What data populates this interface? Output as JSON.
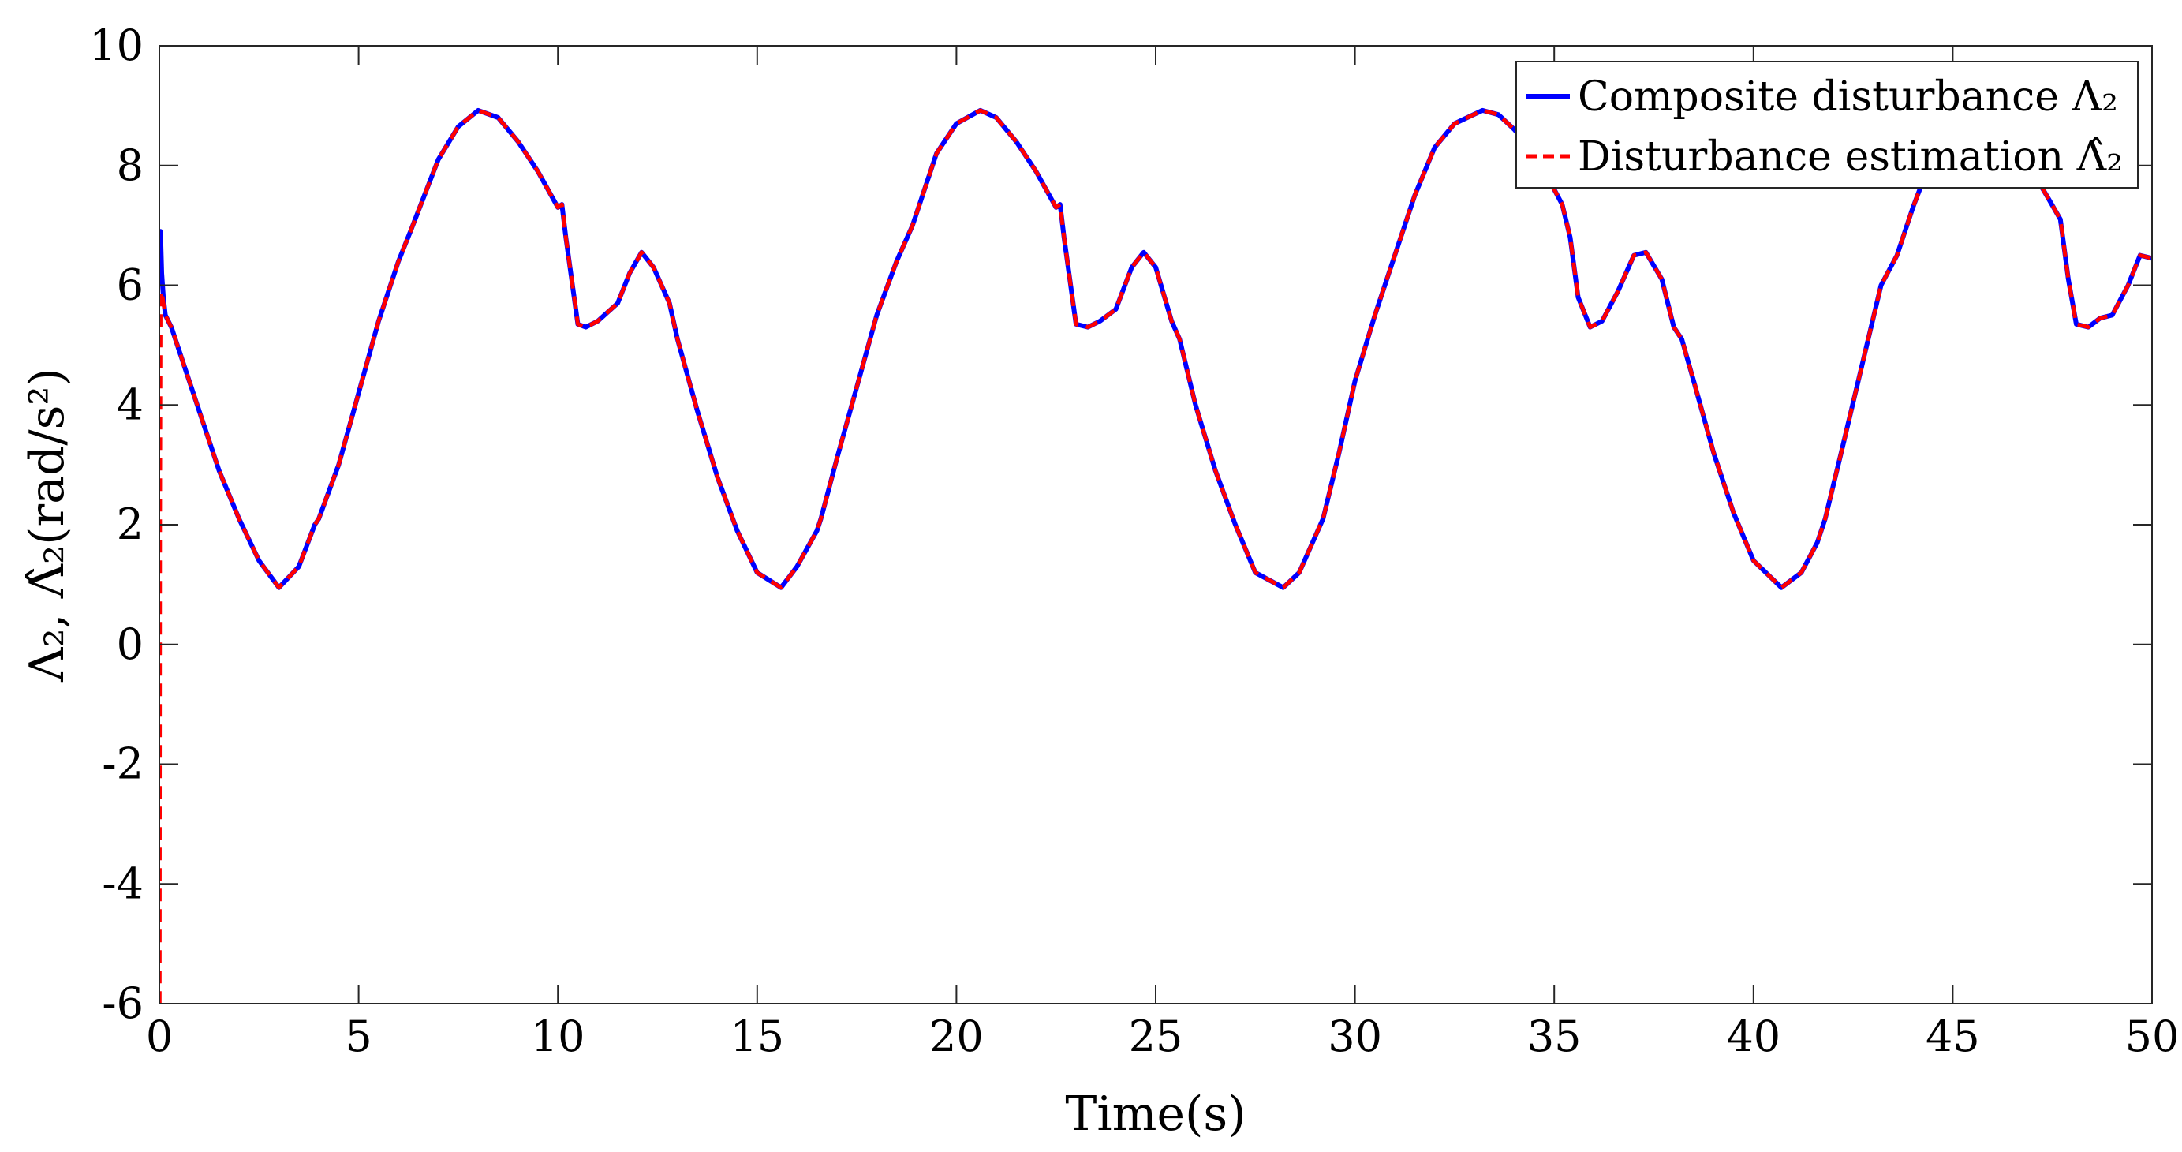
{
  "chart_data": {
    "type": "line",
    "title": "",
    "xlabel": "Time(s)",
    "ylabel": "Λ₂, Λ̂₂(rad/s²)",
    "xlim": [
      0,
      50
    ],
    "ylim": [
      -6,
      10
    ],
    "xticks": [
      0,
      5,
      10,
      15,
      20,
      25,
      30,
      35,
      40,
      45,
      50
    ],
    "yticks": [
      -6,
      -4,
      -2,
      0,
      2,
      4,
      6,
      8,
      10
    ],
    "xtick_labels": [
      "0",
      "5",
      "10",
      "15",
      "20",
      "25",
      "30",
      "35",
      "40",
      "45",
      "50"
    ],
    "ytick_labels": [
      "-6",
      "-4",
      "-2",
      "0",
      "2",
      "4",
      "6",
      "8",
      "10"
    ],
    "grid": false,
    "legend_position": "top-right",
    "period": 12.57,
    "series": [
      {
        "name": "Composite disturbance Λ₂",
        "color": "#0000ff",
        "style": "solid",
        "x": [
          0,
          0.03,
          0.06,
          0.1,
          0.15,
          0.3,
          0.5,
          1.0,
          1.5,
          2.0,
          2.5,
          3.0,
          3.5,
          3.9,
          4.0,
          4.5,
          5.0,
          5.5,
          6.0,
          6.3,
          7.0,
          7.5,
          8.0,
          8.5,
          9.0,
          9.5,
          10.0,
          10.1,
          10.2,
          10.5,
          10.7,
          11.0,
          11.5,
          11.8,
          12.1,
          12.4,
          12.8,
          13.0,
          13.5,
          14.0,
          14.5,
          15.0,
          15.6,
          16.0,
          16.5,
          16.6,
          17.0,
          17.5,
          18.0,
          18.5,
          18.9,
          19.5,
          20.0,
          20.6,
          21.0,
          21.5,
          22.0,
          22.5,
          22.6,
          22.7,
          23.0,
          23.3,
          23.6,
          24.0,
          24.4,
          24.7,
          25.0,
          25.4,
          25.6,
          26.0,
          26.5,
          27.0,
          27.5,
          28.2,
          28.6,
          29.0,
          29.2,
          29.6,
          30.0,
          30.5,
          31.0,
          31.5,
          32.0,
          32.5,
          33.2,
          33.6,
          34.0,
          34.5,
          35.0,
          35.2,
          35.4,
          35.6,
          35.9,
          36.2,
          36.6,
          37.0,
          37.3,
          37.7,
          38.0,
          38.2,
          38.5,
          39.0,
          39.5,
          40.0,
          40.7,
          41.2,
          41.6,
          41.8,
          42.2,
          42.7,
          43.2,
          43.6,
          44.0,
          44.4,
          44.8,
          45.2,
          45.5,
          46.0,
          46.5,
          47.0,
          47.4,
          47.7,
          47.9,
          48.1,
          48.4,
          48.7,
          49.0,
          49.4,
          49.7,
          50.0
        ],
        "y": [
          6.5,
          6.9,
          6.2,
          5.8,
          5.5,
          5.3,
          4.9,
          3.9,
          2.9,
          2.1,
          1.4,
          0.95,
          1.3,
          2.0,
          2.1,
          3.0,
          4.2,
          5.4,
          6.4,
          6.9,
          8.1,
          8.65,
          8.92,
          8.8,
          8.4,
          7.9,
          7.3,
          7.35,
          6.8,
          5.35,
          5.3,
          5.4,
          5.7,
          6.2,
          6.55,
          6.3,
          5.7,
          5.1,
          3.9,
          2.8,
          1.9,
          1.2,
          0.95,
          1.3,
          1.9,
          2.1,
          3.1,
          4.3,
          5.5,
          6.4,
          7.0,
          8.2,
          8.7,
          8.92,
          8.8,
          8.4,
          7.9,
          7.3,
          7.35,
          6.8,
          5.35,
          5.3,
          5.4,
          5.6,
          6.3,
          6.55,
          6.3,
          5.4,
          5.1,
          4.0,
          2.9,
          2.0,
          1.2,
          0.95,
          1.2,
          1.8,
          2.1,
          3.2,
          4.4,
          5.5,
          6.5,
          7.5,
          8.3,
          8.7,
          8.92,
          8.85,
          8.6,
          8.2,
          7.6,
          7.35,
          6.8,
          5.8,
          5.3,
          5.4,
          5.9,
          6.5,
          6.55,
          6.1,
          5.3,
          5.1,
          4.4,
          3.2,
          2.2,
          1.4,
          0.95,
          1.2,
          1.7,
          2.1,
          3.2,
          4.6,
          6.0,
          6.5,
          7.3,
          8.0,
          8.6,
          8.9,
          8.92,
          8.8,
          8.4,
          7.9,
          7.45,
          7.1,
          6.1,
          5.35,
          5.3,
          5.45,
          5.5,
          6.0,
          6.5,
          6.45
        ]
      },
      {
        "name": "Disturbance estimation Λ̂₂",
        "color": "#ff0000",
        "style": "dashed",
        "x": [
          0,
          0.005,
          0.015,
          0.03,
          0.06,
          0.1,
          0.15,
          0.3,
          0.5,
          1.0,
          1.5,
          2.0,
          2.5,
          3.0,
          3.5,
          3.9,
          4.0,
          4.5,
          5.0,
          5.5,
          6.0,
          6.3,
          7.0,
          7.5,
          8.0,
          8.5,
          9.0,
          9.5,
          10.0,
          10.1,
          10.2,
          10.5,
          10.7,
          11.0,
          11.5,
          11.8,
          12.1,
          12.4,
          12.8,
          13.0,
          13.5,
          14.0,
          14.5,
          15.0,
          15.6,
          16.0,
          16.5,
          16.6,
          17.0,
          17.5,
          18.0,
          18.5,
          18.9,
          19.5,
          20.0,
          20.6,
          21.0,
          21.5,
          22.0,
          22.5,
          22.6,
          22.7,
          23.0,
          23.3,
          23.6,
          24.0,
          24.4,
          24.7,
          25.0,
          25.4,
          25.6,
          26.0,
          26.5,
          27.0,
          27.5,
          28.2,
          28.6,
          29.0,
          29.2,
          29.6,
          30.0,
          30.5,
          31.0,
          31.5,
          32.0,
          32.5,
          33.2,
          33.6,
          34.0,
          34.5,
          35.0,
          35.2,
          35.4,
          35.6,
          35.9,
          36.2,
          36.6,
          37.0,
          37.3,
          37.7,
          38.0,
          38.2,
          38.5,
          39.0,
          39.5,
          40.0,
          40.7,
          41.2,
          41.6,
          41.8,
          42.2,
          42.7,
          43.2,
          43.6,
          44.0,
          44.4,
          44.8,
          45.2,
          45.5,
          46.0,
          46.5,
          47.0,
          47.4,
          47.7,
          47.9,
          48.1,
          48.4,
          48.7,
          49.0,
          49.4,
          49.7,
          50.0
        ],
        "y": [
          -6.0,
          -6.0,
          2.0,
          5.8,
          5.9,
          5.7,
          5.5,
          5.3,
          4.9,
          3.9,
          2.9,
          2.1,
          1.4,
          0.95,
          1.3,
          2.0,
          2.1,
          3.0,
          4.2,
          5.4,
          6.4,
          6.9,
          8.1,
          8.65,
          8.92,
          8.8,
          8.4,
          7.9,
          7.3,
          7.35,
          6.8,
          5.35,
          5.3,
          5.4,
          5.7,
          6.2,
          6.55,
          6.3,
          5.7,
          5.1,
          3.9,
          2.8,
          1.9,
          1.2,
          0.95,
          1.3,
          1.9,
          2.1,
          3.1,
          4.3,
          5.5,
          6.4,
          7.0,
          8.2,
          8.7,
          8.92,
          8.8,
          8.4,
          7.9,
          7.3,
          7.35,
          6.8,
          5.35,
          5.3,
          5.4,
          5.6,
          6.3,
          6.55,
          6.3,
          5.4,
          5.1,
          4.0,
          2.9,
          2.0,
          1.2,
          0.95,
          1.2,
          1.8,
          2.1,
          3.2,
          4.4,
          5.5,
          6.5,
          7.5,
          8.3,
          8.7,
          8.92,
          8.85,
          8.6,
          8.2,
          7.6,
          7.35,
          6.8,
          5.8,
          5.3,
          5.4,
          5.9,
          6.5,
          6.55,
          6.1,
          5.3,
          5.1,
          4.4,
          3.2,
          2.2,
          1.4,
          0.95,
          1.2,
          1.7,
          2.1,
          3.2,
          4.6,
          6.0,
          6.5,
          7.3,
          8.0,
          8.6,
          8.9,
          8.92,
          8.8,
          8.4,
          7.9,
          7.45,
          7.1,
          6.1,
          5.35,
          5.3,
          5.45,
          5.5,
          6.0,
          6.5,
          6.45
        ]
      }
    ]
  }
}
